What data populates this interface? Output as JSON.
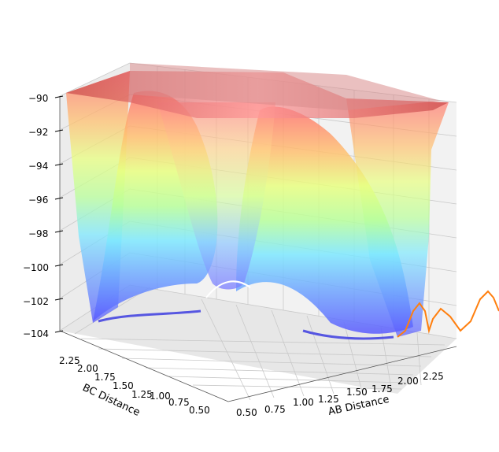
{
  "chart_data": {
    "type": "surface3d",
    "title": "",
    "xlabel": "AB Distance",
    "ylabel": "BC Distance",
    "zlabel": "",
    "xticks": [
      "0.50",
      "0.75",
      "1.00",
      "1.25",
      "1.50",
      "1.75",
      "2.00",
      "2.25"
    ],
    "yticks": [
      "2.25",
      "2.00",
      "1.75",
      "1.50",
      "1.25",
      "1.00",
      "0.75",
      "0.50"
    ],
    "zticks": [
      "−90",
      "−92",
      "−94",
      "−96",
      "−98",
      "−100",
      "−102",
      "−104"
    ],
    "xlim": [
      0.5,
      2.4
    ],
    "ylim": [
      0.5,
      2.4
    ],
    "zlim": [
      -104,
      -90
    ],
    "colormap": "jet",
    "series": [
      {
        "type": "surface",
        "description_values": {
          "z_min": -104,
          "z_max": -90,
          "minimum_valley_ab": 0.75,
          "minimum_valley_bc": 0.75
        }
      },
      {
        "type": "line",
        "color": "#ff7f0e",
        "x": [
          2.1,
          2.2,
          2.3,
          2.4,
          2.5
        ],
        "y": [
          0.75,
          0.75,
          0.75,
          0.75,
          0.75
        ],
        "z": [
          -104,
          -102.5,
          -103.5,
          -102,
          -101
        ]
      }
    ],
    "grid": true
  }
}
